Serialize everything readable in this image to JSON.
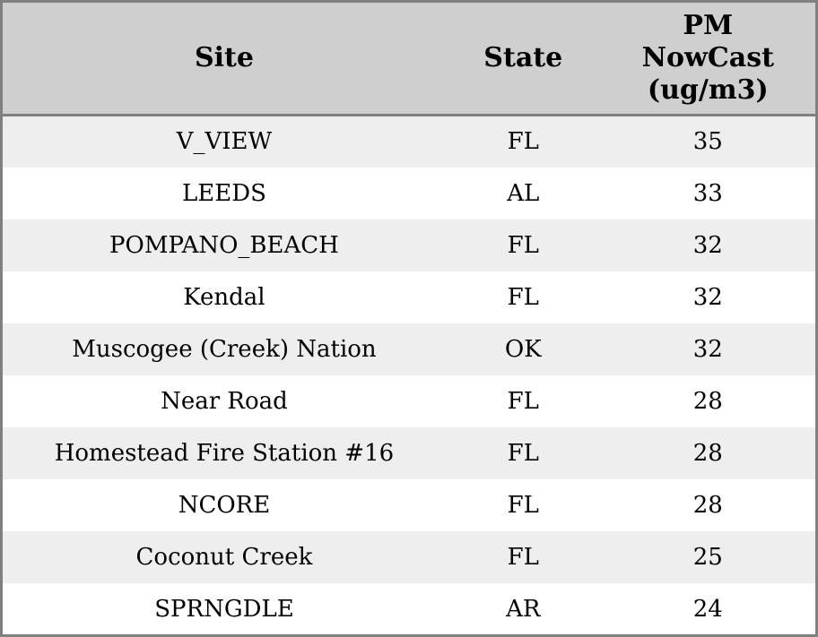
{
  "table": {
    "headers": {
      "site": "Site",
      "state": "State",
      "pm": "PM NowCast (ug/m3)"
    },
    "rows": [
      {
        "site": "V_VIEW",
        "state": "FL",
        "pm": "35"
      },
      {
        "site": "LEEDS",
        "state": "AL",
        "pm": "33"
      },
      {
        "site": "POMPANO_BEACH",
        "state": "FL",
        "pm": "32"
      },
      {
        "site": "Kendal",
        "state": "FL",
        "pm": "32"
      },
      {
        "site": "Muscogee (Creek) Nation",
        "state": "OK",
        "pm": "32"
      },
      {
        "site": "Near Road",
        "state": "FL",
        "pm": "28"
      },
      {
        "site": "Homestead Fire Station #16",
        "state": "FL",
        "pm": "28"
      },
      {
        "site": "NCORE",
        "state": "FL",
        "pm": "28"
      },
      {
        "site": "Coconut Creek",
        "state": "FL",
        "pm": "25"
      },
      {
        "site": "SPRNGDLE",
        "state": "AR",
        "pm": "24"
      }
    ]
  },
  "chart_data": {
    "type": "table",
    "title": "",
    "columns": [
      "Site",
      "State",
      "PM NowCast (ug/m3)"
    ],
    "categories": [
      "V_VIEW",
      "LEEDS",
      "POMPANO_BEACH",
      "Kendal",
      "Muscogee (Creek) Nation",
      "Near Road",
      "Homestead Fire Station #16",
      "NCORE",
      "Coconut Creek",
      "SPRNGDLE"
    ],
    "states": [
      "FL",
      "AL",
      "FL",
      "FL",
      "OK",
      "FL",
      "FL",
      "FL",
      "FL",
      "AR"
    ],
    "values": [
      35,
      33,
      32,
      32,
      32,
      28,
      28,
      28,
      25,
      24
    ],
    "ylabel": "PM NowCast (ug/m3)"
  },
  "colors": {
    "header_bg": "#cfcfcf",
    "row_alt_bg": "#eeeeee",
    "row_bg": "#ffffff",
    "border": "#808080",
    "text": "#000000"
  }
}
